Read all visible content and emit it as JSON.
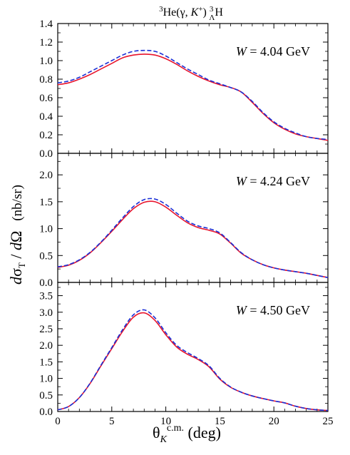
{
  "figure": {
    "title": {
      "pre": "3",
      "main": "He(γ, ",
      "k": "K",
      "plus": "+",
      "close": ") ",
      "sup": "3",
      "sub": "Λ",
      "end": "H"
    },
    "ylabel": {
      "a": "d",
      "sigma": "σ",
      "sub": "T",
      "b": " / ",
      "c": "d",
      "omega": "Ω",
      "units": "(nb/sr)"
    },
    "xlabel": {
      "theta": "θ",
      "sub": "K",
      "sup": "c.m.",
      "units": " (deg)"
    }
  },
  "colors": {
    "solid": "#e8142c",
    "dashed": "#1a2fd6",
    "axis": "#000000"
  },
  "chart_data": [
    {
      "type": "line",
      "panel": "top",
      "annotation": {
        "w": "W",
        "rest": " = 4.04 GeV"
      },
      "xlim": [
        0,
        25
      ],
      "ylim": [
        0,
        1.4
      ],
      "xticks": [
        0,
        5,
        10,
        15,
        20,
        25
      ],
      "yticks": [
        0.0,
        0.2,
        0.4,
        0.6,
        0.8,
        1.0,
        1.2,
        1.4
      ],
      "ytick_labels": [
        "0.0",
        "0.2",
        "0.4",
        "0.6",
        "0.8",
        "1.0",
        "1.2",
        "1.4"
      ],
      "series": [
        {
          "style": "solid",
          "x": [
            0,
            1,
            2,
            3,
            4,
            5,
            6,
            7,
            8,
            9,
            10,
            11,
            12,
            13,
            14,
            15,
            16,
            17,
            18,
            19,
            20,
            21,
            22,
            23,
            24,
            25
          ],
          "values": [
            0.74,
            0.76,
            0.8,
            0.85,
            0.91,
            0.97,
            1.03,
            1.06,
            1.07,
            1.06,
            1.02,
            0.96,
            0.89,
            0.83,
            0.78,
            0.74,
            0.71,
            0.66,
            0.55,
            0.43,
            0.33,
            0.26,
            0.21,
            0.18,
            0.16,
            0.14
          ]
        },
        {
          "style": "dashed",
          "x": [
            0,
            1,
            2,
            3,
            4,
            5,
            6,
            7,
            8,
            9,
            10,
            11,
            12,
            13,
            14,
            15,
            16,
            17,
            18,
            19,
            20,
            21,
            22,
            23,
            24,
            25
          ],
          "values": [
            0.76,
            0.78,
            0.82,
            0.88,
            0.94,
            1.0,
            1.06,
            1.1,
            1.11,
            1.1,
            1.05,
            0.98,
            0.91,
            0.85,
            0.79,
            0.75,
            0.71,
            0.66,
            0.56,
            0.44,
            0.34,
            0.27,
            0.22,
            0.18,
            0.16,
            0.15
          ]
        }
      ]
    },
    {
      "type": "line",
      "panel": "middle",
      "annotation": {
        "w": "W",
        "rest": " = 4.24 GeV"
      },
      "xlim": [
        0,
        25
      ],
      "ylim": [
        0,
        2.4
      ],
      "xticks": [
        0,
        5,
        10,
        15,
        20,
        25
      ],
      "yticks": [
        0.0,
        0.5,
        1.0,
        1.5,
        2.0
      ],
      "ytick_labels": [
        "0.0",
        "0.5",
        "1.0",
        "1.5",
        "2.0"
      ],
      "series": [
        {
          "style": "solid",
          "x": [
            0,
            1,
            2,
            3,
            4,
            5,
            6,
            7,
            8,
            9,
            10,
            11,
            12,
            13,
            14,
            15,
            16,
            17,
            18,
            19,
            20,
            21,
            22,
            23,
            24,
            25
          ],
          "values": [
            0.28,
            0.32,
            0.41,
            0.55,
            0.74,
            0.95,
            1.17,
            1.37,
            1.49,
            1.5,
            1.4,
            1.25,
            1.11,
            1.02,
            0.97,
            0.9,
            0.73,
            0.54,
            0.42,
            0.33,
            0.27,
            0.23,
            0.2,
            0.17,
            0.13,
            0.09
          ]
        },
        {
          "style": "dashed",
          "x": [
            0,
            1,
            2,
            3,
            4,
            5,
            6,
            7,
            8,
            9,
            10,
            11,
            12,
            13,
            14,
            15,
            16,
            17,
            18,
            19,
            20,
            21,
            22,
            23,
            24,
            25
          ],
          "values": [
            0.29,
            0.33,
            0.42,
            0.56,
            0.75,
            0.97,
            1.2,
            1.41,
            1.54,
            1.55,
            1.45,
            1.29,
            1.14,
            1.05,
            1.0,
            0.92,
            0.74,
            0.55,
            0.42,
            0.33,
            0.27,
            0.23,
            0.2,
            0.17,
            0.13,
            0.09
          ]
        }
      ]
    },
    {
      "type": "line",
      "panel": "bottom",
      "annotation": {
        "w": "W",
        "rest": " = 4.50 GeV"
      },
      "xlim": [
        0,
        25
      ],
      "ylim": [
        0,
        3.9
      ],
      "xticks": [
        0,
        5,
        10,
        15,
        20,
        25
      ],
      "xtick_labels": [
        "0",
        "5",
        "10",
        "15",
        "20",
        "25"
      ],
      "yticks": [
        0.0,
        0.5,
        1.0,
        1.5,
        2.0,
        2.5,
        3.0,
        3.5
      ],
      "ytick_labels": [
        "0.0",
        "0.5",
        "1.0",
        "1.5",
        "2.0",
        "2.5",
        "3.0",
        "3.5"
      ],
      "series": [
        {
          "style": "solid",
          "x": [
            0,
            1,
            2,
            3,
            4,
            5,
            6,
            7,
            8,
            9,
            10,
            11,
            12,
            13,
            14,
            15,
            16,
            17,
            18,
            19,
            20,
            21,
            22,
            23,
            24,
            25
          ],
          "values": [
            0.05,
            0.15,
            0.42,
            0.85,
            1.38,
            1.9,
            2.42,
            2.85,
            2.98,
            2.75,
            2.32,
            1.95,
            1.73,
            1.57,
            1.35,
            0.98,
            0.73,
            0.58,
            0.47,
            0.39,
            0.32,
            0.26,
            0.16,
            0.09,
            0.05,
            0.03
          ]
        },
        {
          "style": "dashed",
          "x": [
            0,
            1,
            2,
            3,
            4,
            5,
            6,
            7,
            8,
            9,
            10,
            11,
            12,
            13,
            14,
            15,
            16,
            17,
            18,
            19,
            20,
            21,
            22,
            23,
            24,
            25
          ],
          "values": [
            0.05,
            0.15,
            0.42,
            0.86,
            1.4,
            1.93,
            2.47,
            2.92,
            3.07,
            2.83,
            2.38,
            2.0,
            1.78,
            1.6,
            1.38,
            1.0,
            0.74,
            0.58,
            0.47,
            0.39,
            0.32,
            0.26,
            0.16,
            0.09,
            0.05,
            0.03
          ]
        }
      ]
    }
  ]
}
